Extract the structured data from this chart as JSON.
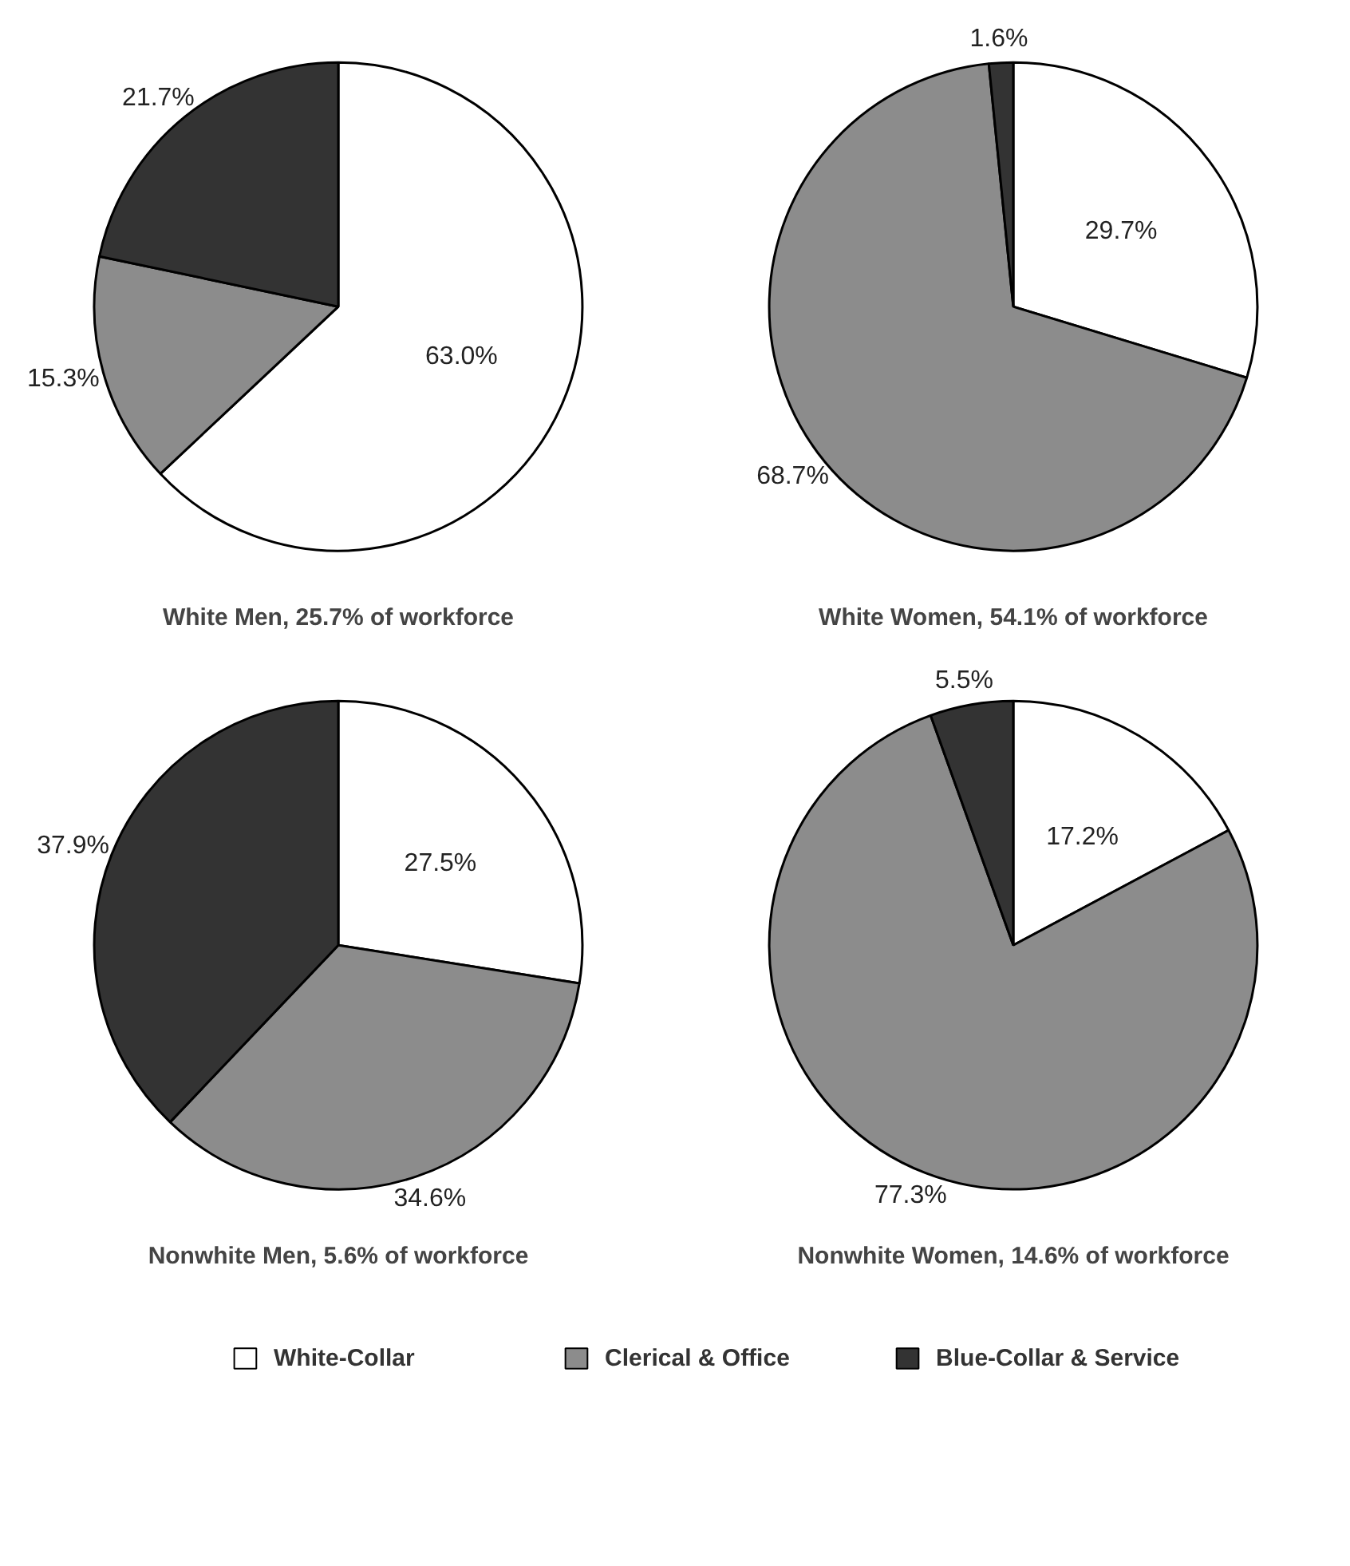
{
  "chart_data": [
    {
      "type": "pie",
      "title": "White Men, 25.7% of workforce",
      "categories": [
        "White-Collar",
        "Clerical & Office",
        "Blue-Collar & Service"
      ],
      "values": [
        63.0,
        15.3,
        21.7
      ],
      "value_labels": [
        "63.0%",
        "15.3%",
        "21.7%"
      ],
      "colors": [
        "#ffffff",
        "#8c8c8c",
        "#333333"
      ],
      "legend": "bottom"
    },
    {
      "type": "pie",
      "title": "White Women, 54.1% of workforce",
      "values": [
        29.7,
        68.7,
        1.6
      ],
      "value_labels": [
        "29.7%",
        "68.7%",
        "1.6%"
      ],
      "colors": [
        "#ffffff",
        "#8c8c8c",
        "#333333"
      ]
    },
    {
      "type": "pie",
      "title": "Nonwhite Men, 5.6% of workforce",
      "values": [
        27.5,
        34.6,
        37.9
      ],
      "value_labels": [
        "27.5%",
        "34.6%",
        "37.9%"
      ],
      "colors": [
        "#ffffff",
        "#8c8c8c",
        "#333333"
      ]
    },
    {
      "type": "pie",
      "title": "Nonwhite Women, 14.6% of workforce",
      "values": [
        17.2,
        77.3,
        5.5
      ],
      "value_labels": [
        "17.2%",
        "77.3%",
        "5.5%"
      ],
      "colors": [
        "#ffffff",
        "#8c8c8c",
        "#333333"
      ]
    }
  ]
}
